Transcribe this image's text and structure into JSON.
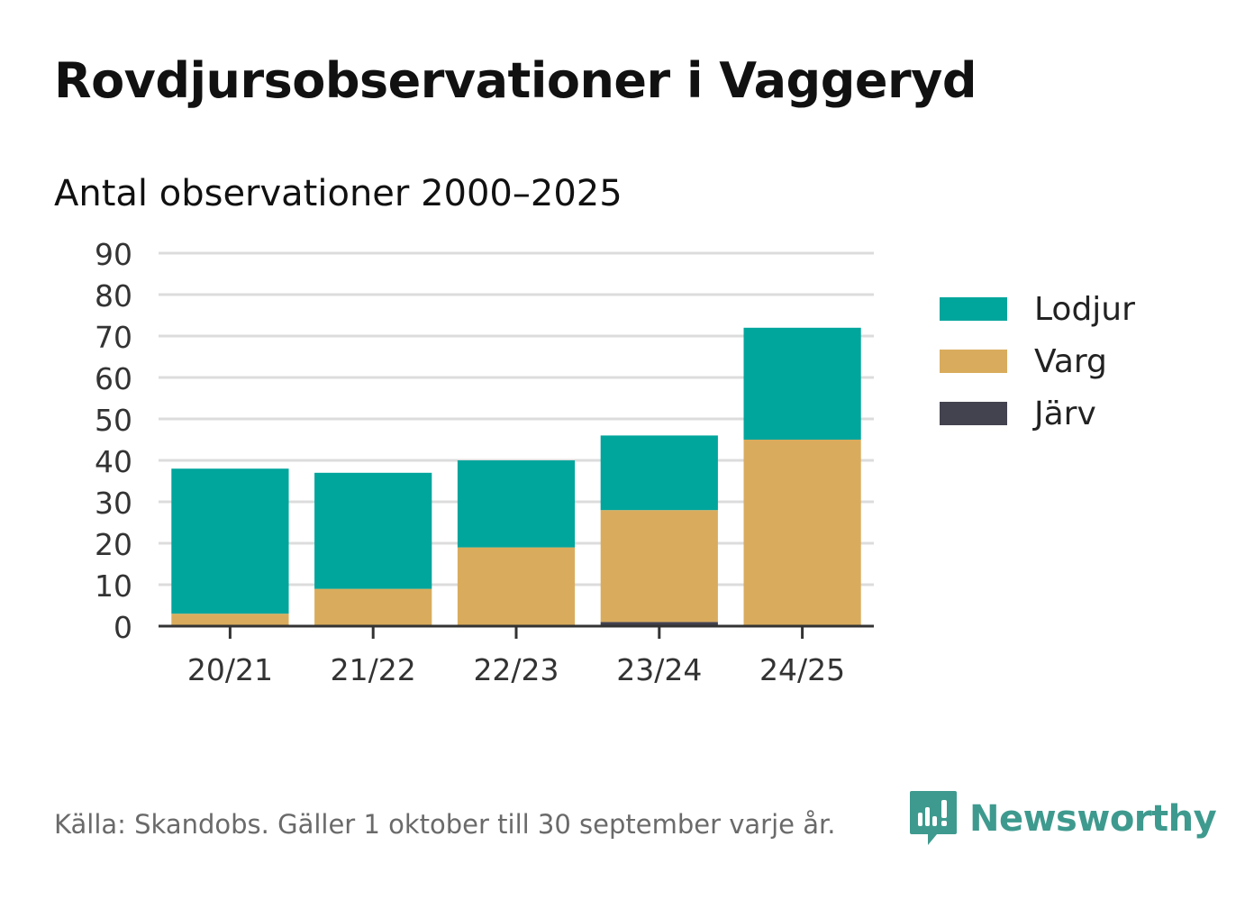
{
  "title": "Rovdjursobservationer i Vaggeryd",
  "subtitle": "Antal observationer 2000–2025",
  "chart_data": {
    "type": "bar",
    "stacked": true,
    "title": "Rovdjursobservationer i Vaggeryd",
    "subtitle": "Antal observationer 2000–2025",
    "xlabel": "",
    "ylabel": "",
    "ylim": [
      0,
      90
    ],
    "yticks": [
      0,
      10,
      20,
      30,
      40,
      50,
      60,
      70,
      80,
      90
    ],
    "grid": true,
    "legend_position": "right",
    "categories": [
      "20/21",
      "21/22",
      "22/23",
      "23/24",
      "24/25"
    ],
    "series": [
      {
        "name": "Järv",
        "color": "#43424f",
        "values": [
          0,
          0,
          0,
          1,
          0
        ]
      },
      {
        "name": "Varg",
        "color": "#d9ac5d",
        "values": [
          3,
          9,
          19,
          27,
          45
        ]
      },
      {
        "name": "Lodjur",
        "color": "#00a59c",
        "values": [
          35,
          28,
          21,
          18,
          27
        ]
      }
    ]
  },
  "legend": [
    {
      "label": "Lodjur",
      "color": "#00a59c"
    },
    {
      "label": "Varg",
      "color": "#d9ac5d"
    },
    {
      "label": "Järv",
      "color": "#43424f"
    }
  ],
  "footer": {
    "source": "Källa: Skandobs. Gäller 1 oktober till 30 september varje år.",
    "brand": "Newsworthy",
    "brand_color": "#3e9a8e"
  }
}
